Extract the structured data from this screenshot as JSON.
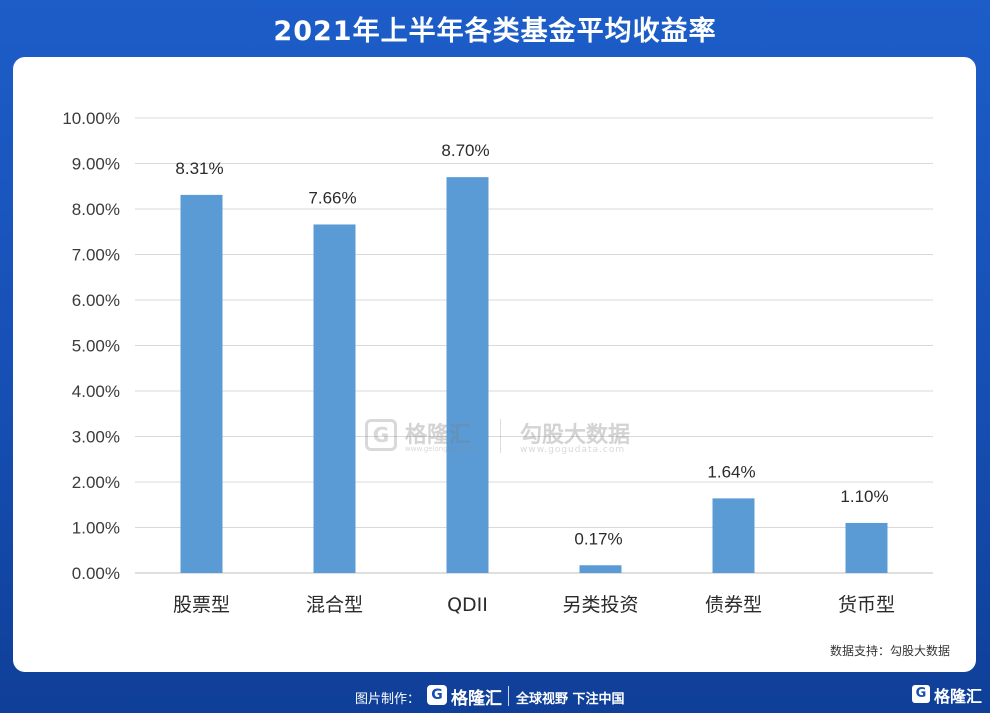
{
  "header": {
    "title": "2021年上半年各类基金平均收益率"
  },
  "chart_data": {
    "type": "bar",
    "title": "",
    "xlabel": "",
    "ylabel": "",
    "categories": [
      "股票型",
      "混合型",
      "QDII",
      "另类投资",
      "债券型",
      "货币型"
    ],
    "values": [
      8.31,
      7.66,
      8.7,
      0.17,
      1.64,
      1.1
    ],
    "data_labels": [
      "8.31%",
      "7.66%",
      "8.70%",
      "0.17%",
      "1.64%",
      "1.10%"
    ],
    "ylim": [
      0,
      10
    ],
    "yticks": [
      0,
      1,
      2,
      3,
      4,
      5,
      6,
      7,
      8,
      9,
      10
    ],
    "ytick_labels": [
      "0.00%",
      "1.00%",
      "2.00%",
      "3.00%",
      "4.00%",
      "5.00%",
      "6.00%",
      "7.00%",
      "8.00%",
      "9.00%",
      "10.00%"
    ],
    "grid": true,
    "legend": "none",
    "bar_color": "#5b9bd5"
  },
  "watermark": {
    "brand": "格隆汇",
    "brand_url": "www.gelonghui.com",
    "data_brand": "勾股大数据",
    "data_url": "www.gogudata.com"
  },
  "source": "数据支持：勾股大数据",
  "footer": {
    "made_by": "图片制作：",
    "brand": "格隆汇",
    "slogan": "全球视野 下注中国",
    "corner_brand": "格隆汇",
    "logo_letter": "G"
  },
  "colors": {
    "background": "#164fb4",
    "bar": "#5b9bd5",
    "grid": "#d9d9d9"
  }
}
